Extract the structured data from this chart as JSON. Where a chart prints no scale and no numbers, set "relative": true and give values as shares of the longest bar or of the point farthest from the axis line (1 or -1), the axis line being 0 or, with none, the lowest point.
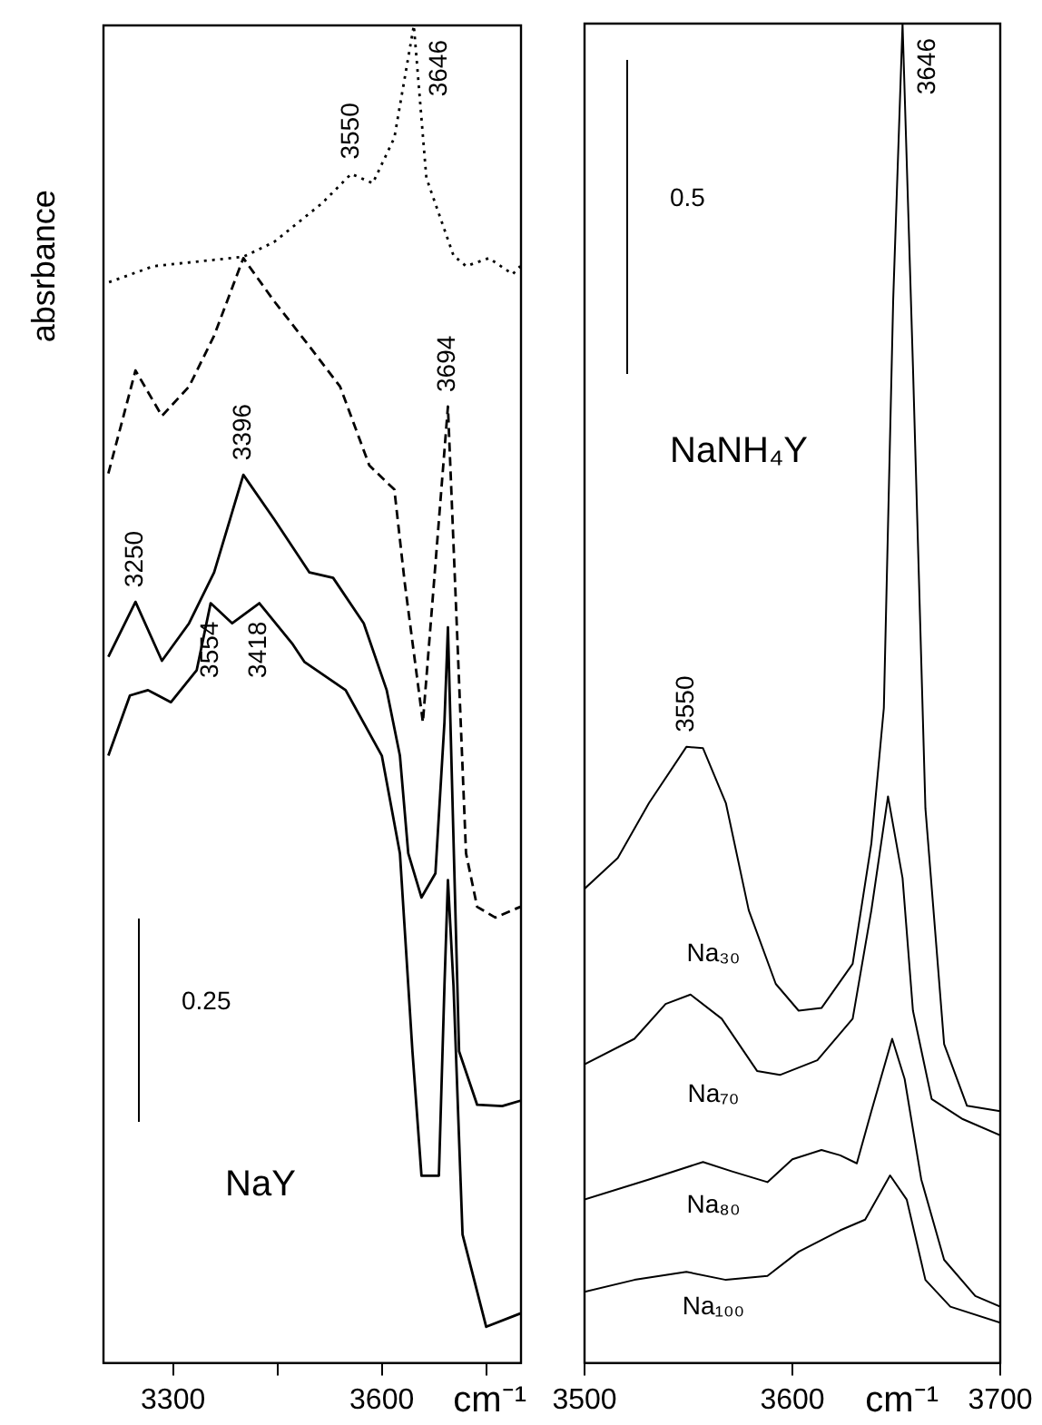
{
  "chart_data": [
    {
      "type": "line",
      "ylabel": "absrbance",
      "xlabel": "cm⁻¹",
      "relative": true,
      "xlim": [
        3200,
        3800
      ],
      "xticks": [
        3300,
        {
          "value": 3450,
          "label": null
        },
        3600,
        {
          "value": 3750,
          "label": null
        }
      ],
      "grid": false,
      "legend": false,
      "series": [
        {
          "color": "#000000",
          "line_style": "dotted",
          "x": [
            3208,
            3272,
            3401,
            3445,
            3514,
            3556,
            3587,
            3618,
            3646,
            3664,
            3703,
            3721,
            3754,
            3788,
            3799
          ],
          "values": [
            0.808,
            0.82,
            0.827,
            0.838,
            0.867,
            0.889,
            0.882,
            0.916,
            1.0,
            0.886,
            0.828,
            0.82,
            0.826,
            0.814,
            0.82
          ]
        },
        {
          "color": "#000000",
          "line_style": "dashed",
          "x": [
            3207,
            3246,
            3284,
            3323,
            3359,
            3401,
            3445,
            3496,
            3540,
            3582,
            3618,
            3633,
            3659,
            3695,
            3721,
            3737,
            3763,
            3799
          ],
          "values": [
            0.665,
            0.742,
            0.708,
            0.73,
            0.768,
            0.826,
            0.794,
            0.76,
            0.73,
            0.671,
            0.653,
            0.583,
            0.479,
            0.715,
            0.381,
            0.341,
            0.333,
            0.341
          ]
        },
        {
          "color": "#000000",
          "line_style": "solid",
          "x": [
            3207,
            3246,
            3284,
            3323,
            3359,
            3401,
            3445,
            3496,
            3530,
            3574,
            3607,
            3626,
            3638,
            3657,
            3677,
            3690,
            3695,
            3711,
            3737,
            3773,
            3799
          ],
          "values": [
            0.528,
            0.569,
            0.525,
            0.553,
            0.591,
            0.664,
            0.631,
            0.591,
            0.587,
            0.553,
            0.503,
            0.454,
            0.381,
            0.348,
            0.366,
            0.479,
            0.55,
            0.233,
            0.193,
            0.192,
            0.196
          ]
        },
        {
          "color": "#000000",
          "line_style": "solid",
          "x": [
            3207,
            3238,
            3264,
            3297,
            3334,
            3354,
            3385,
            3424,
            3471,
            3489,
            3548,
            3600,
            3626,
            3644,
            3657,
            3682,
            3690,
            3695,
            3703,
            3716,
            3750,
            3799
          ],
          "values": [
            0.454,
            0.499,
            0.503,
            0.494,
            0.518,
            0.568,
            0.553,
            0.568,
            0.538,
            0.524,
            0.503,
            0.454,
            0.381,
            0.233,
            0.14,
            0.14,
            0.282,
            0.361,
            0.282,
            0.096,
            0.027,
            0.037
          ]
        }
      ],
      "annotations": [
        {
          "text": "3550",
          "x": 3556,
          "y": 0.889
        },
        {
          "text": "3646",
          "x": 3646,
          "y": 1.0
        },
        {
          "text": "3396",
          "x": 3401,
          "y": 0.664
        },
        {
          "text": "3694",
          "x": 3695,
          "y": 0.715
        },
        {
          "text": "3250",
          "x": 3246,
          "y": 0.569
        },
        {
          "text": "3554",
          "x": 3354,
          "y": 0.568
        },
        {
          "text": "3418",
          "x": 3424,
          "y": 0.568
        },
        "0.25",
        "NaY"
      ]
    },
    {
      "type": "line",
      "xlabel": "cm⁻¹",
      "relative": true,
      "xlim": [
        3500,
        3700
      ],
      "xticks": [
        3500,
        3600,
        3700
      ],
      "grid": false,
      "legend": false,
      "series": [
        {
          "name": "Na₃₀",
          "color": "#000000",
          "x": [
            3500,
            3516,
            3531,
            3549,
            3557,
            3568,
            3579,
            3592,
            3603,
            3614,
            3629,
            3638,
            3644,
            3648.5,
            3653,
            3658,
            3664,
            3673,
            3684,
            3700
          ],
          "values": [
            0.354,
            0.377,
            0.418,
            0.46,
            0.459,
            0.418,
            0.338,
            0.283,
            0.263,
            0.265,
            0.298,
            0.388,
            0.489,
            0.794,
            1.0,
            0.744,
            0.414,
            0.238,
            0.192,
            0.188
          ]
        },
        {
          "name": "Na₇₀",
          "color": "#000000",
          "x": [
            3500,
            3524,
            3539,
            3551,
            3566,
            3583,
            3594,
            3612,
            3629,
            3638,
            3646,
            3653,
            3658,
            3667,
            3682,
            3700
          ],
          "values": [
            0.223,
            0.242,
            0.268,
            0.275,
            0.257,
            0.218,
            0.215,
            0.226,
            0.257,
            0.338,
            0.423,
            0.362,
            0.263,
            0.197,
            0.182,
            0.17
          ]
        },
        {
          "name": "Na₈₀",
          "color": "#000000",
          "x": [
            3500,
            3531,
            3557,
            3571,
            3588,
            3600,
            3614,
            3623,
            3631,
            3638,
            3648,
            3654,
            3662,
            3673,
            3688,
            3700
          ],
          "values": [
            0.122,
            0.137,
            0.15,
            0.143,
            0.135,
            0.152,
            0.159,
            0.155,
            0.149,
            0.188,
            0.242,
            0.212,
            0.137,
            0.077,
            0.05,
            0.042
          ]
        },
        {
          "name": "Na₁₀₀",
          "color": "#000000",
          "x": [
            3500,
            3524,
            3549,
            3568,
            3588,
            3603,
            3623,
            3635,
            3647,
            3655,
            3664,
            3676,
            3700
          ],
          "values": [
            0.053,
            0.062,
            0.068,
            0.062,
            0.065,
            0.083,
            0.099,
            0.107,
            0.14,
            0.122,
            0.062,
            0.042,
            0.03
          ]
        }
      ],
      "annotations": [
        {
          "text": "3646",
          "x": 3653,
          "y": 1.0
        },
        {
          "text": "3550",
          "x": 3549,
          "y": 0.46
        },
        "0.5",
        "NaNH₄Y"
      ]
    }
  ]
}
